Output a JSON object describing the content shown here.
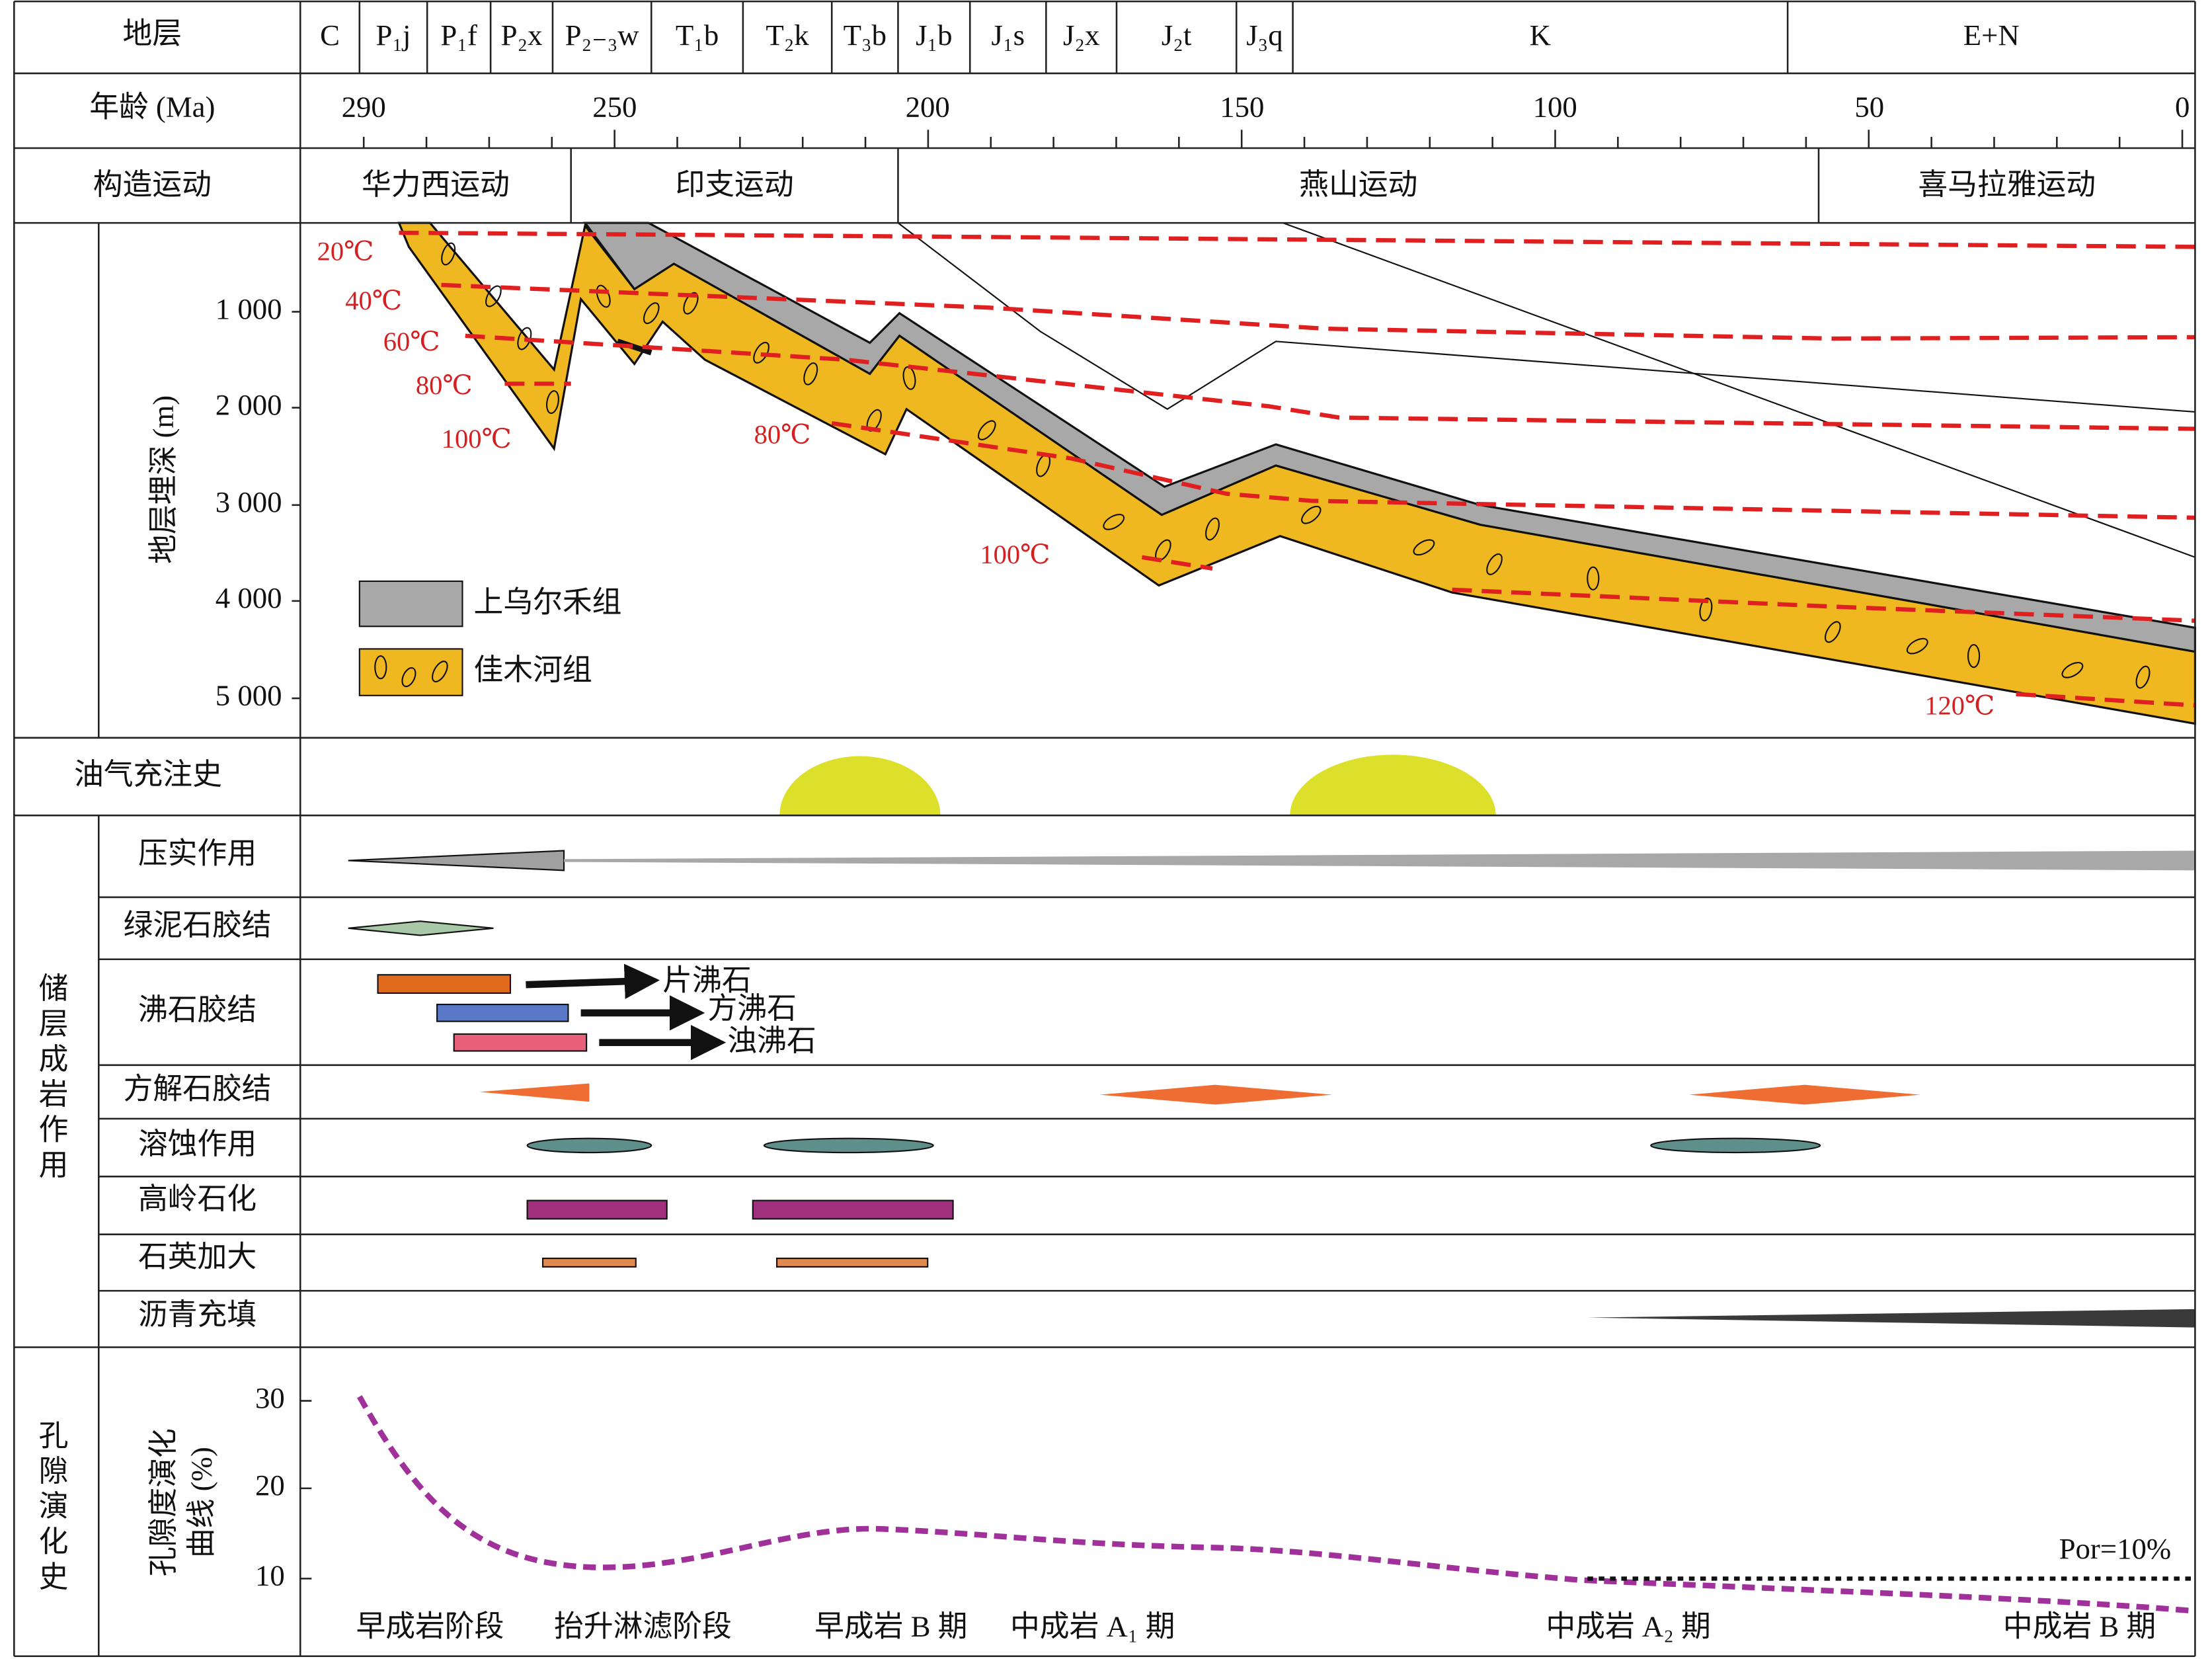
{
  "header": {
    "strata_label": "地层",
    "age_label": "年龄 (Ma)",
    "tectonic_label": "构造运动"
  },
  "strata": [
    "C",
    "P₁j",
    "P₁f",
    "P₂x",
    "P₂₋₃w",
    "T₁b",
    "T₂k",
    "T₃b",
    "J₁b",
    "J₁s",
    "J₂x",
    "J₂t",
    "J₃q",
    "K",
    "E+N"
  ],
  "ages": [
    "290",
    "250",
    "200",
    "150",
    "100",
    "50",
    "0"
  ],
  "tectonics": [
    "华力西运动",
    "印支运动",
    "燕山运动",
    "喜马拉雅运动"
  ],
  "burial": {
    "axis_title": "地层埋深 (m)",
    "depth_ticks": [
      "1 000",
      "2 000",
      "3 000",
      "4 000",
      "5 000"
    ],
    "isotherms": [
      "20℃",
      "40℃",
      "60℃",
      "80℃",
      "100℃",
      "80℃",
      "100℃",
      "120℃"
    ],
    "legend": [
      "上乌尔禾组",
      "佳木河组"
    ]
  },
  "oil_charging": {
    "label": "油气充注史"
  },
  "diagenesis": {
    "label": "储层成岩作用",
    "rows": [
      "压实作用",
      "绿泥石胶结",
      "沸石胶结",
      "方解石胶结",
      "溶蚀作用",
      "高岭石化",
      "石英加大",
      "沥青充填"
    ],
    "zeolites": [
      "片沸石",
      "方沸石",
      "浊沸石"
    ]
  },
  "porosity": {
    "label": "孔隙演化史",
    "axis_title": [
      "孔隙度演化",
      "曲线 (%)"
    ],
    "ticks": [
      "30",
      "20",
      "10"
    ],
    "cutoff": "Por=10%",
    "stages": [
      "早成岩阶段",
      "抬升淋滤阶段",
      "早成岩 B 期",
      "中成岩 A₁ 期",
      "中成岩 A₂ 期",
      "中成岩 B 期"
    ]
  }
}
